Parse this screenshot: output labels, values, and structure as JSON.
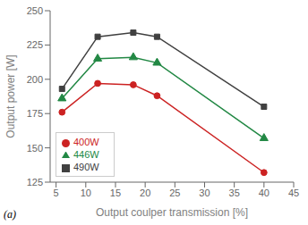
{
  "chart_data": {
    "type": "line",
    "xlabel": "Output coulper transmission [%]",
    "ylabel": "Output power [W]",
    "annotation": "(a)",
    "x": [
      6,
      12,
      18,
      22,
      40
    ],
    "series": [
      {
        "name": "490W",
        "color": "#404040",
        "marker": "square",
        "values": [
          193,
          231,
          234,
          231,
          180
        ]
      },
      {
        "name": "400W",
        "color": "#cc2222",
        "marker": "circle",
        "values": [
          176,
          197,
          196,
          188,
          132
        ]
      },
      {
        "name": "446W",
        "color": "#228844",
        "marker": "triangle",
        "values": [
          186,
          215,
          216,
          212,
          157
        ]
      }
    ],
    "xlim": [
      4,
      45
    ],
    "ylim": [
      125,
      250
    ],
    "xticks": [
      5,
      10,
      15,
      20,
      25,
      30,
      35,
      40,
      45
    ],
    "yticks": [
      125,
      150,
      175,
      200,
      225,
      250
    ],
    "legend": "lower left",
    "grid": false
  }
}
